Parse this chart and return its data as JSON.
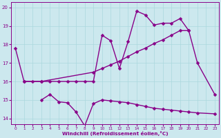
{
  "xlabel": "Windchill (Refroidissement éolien,°C)",
  "background_color": "#cce8ee",
  "line_color": "#880088",
  "xlim": [
    -0.5,
    23.5
  ],
  "ylim": [
    13.7,
    20.3
  ],
  "yticks": [
    14,
    15,
    16,
    17,
    18,
    19,
    20
  ],
  "xticks": [
    0,
    1,
    2,
    3,
    4,
    5,
    6,
    7,
    8,
    9,
    10,
    11,
    12,
    13,
    14,
    15,
    16,
    17,
    18,
    19,
    20,
    21,
    22,
    23
  ],
  "series1_x": [
    0,
    1,
    2,
    3,
    4,
    5,
    6,
    7,
    8,
    9,
    10,
    11,
    12,
    13,
    14,
    15,
    16,
    17,
    18,
    19,
    20,
    21,
    23
  ],
  "series1_y": [
    17.8,
    16.0,
    16.0,
    16.0,
    16.0,
    16.0,
    16.0,
    16.0,
    16.0,
    16.0,
    18.5,
    18.2,
    16.7,
    18.15,
    19.8,
    19.6,
    19.05,
    19.15,
    19.15,
    19.4,
    18.75,
    17.0,
    15.3
  ],
  "series2_x": [
    1,
    3,
    9,
    10,
    11,
    12,
    13,
    14,
    15,
    16,
    17,
    18,
    19,
    20
  ],
  "series2_y": [
    16.0,
    16.0,
    16.5,
    16.7,
    16.9,
    17.1,
    17.35,
    17.6,
    17.8,
    18.05,
    18.25,
    18.5,
    18.75,
    18.75
  ],
  "series3_x": [
    3,
    4,
    5,
    6,
    7,
    8,
    9,
    10,
    11,
    12,
    13,
    14,
    15,
    16,
    17,
    18,
    19,
    20,
    21,
    23
  ],
  "series3_y": [
    15.0,
    15.3,
    14.9,
    14.85,
    14.35,
    13.6,
    14.8,
    15.0,
    14.95,
    14.9,
    14.85,
    14.75,
    14.65,
    14.55,
    14.5,
    14.45,
    14.4,
    14.35,
    14.3,
    14.25
  ],
  "grid_color": "#aad8dd",
  "marker": "D",
  "markersize": 2.5,
  "linewidth": 1.0
}
